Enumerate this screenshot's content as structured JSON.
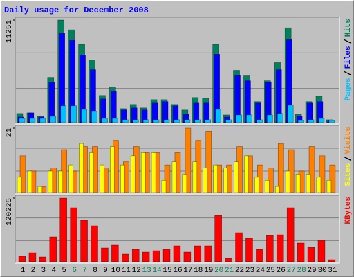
{
  "chart_data": {
    "type": "bar",
    "title": "Daily usage for December 2008",
    "categories": [
      "1",
      "2",
      "3",
      "4",
      "5",
      "6",
      "7",
      "8",
      "9",
      "10",
      "11",
      "12",
      "13",
      "14",
      "15",
      "16",
      "17",
      "18",
      "19",
      "20",
      "21",
      "22",
      "23",
      "24",
      "25",
      "26",
      "27",
      "28",
      "29",
      "30",
      "31"
    ],
    "category_colors": [
      "#000000",
      "#000000",
      "#000000",
      "#000000",
      "#000000",
      "#00805C",
      "#00805C",
      "#000000",
      "#000000",
      "#000000",
      "#000000",
      "#000000",
      "#00805C",
      "#00805C",
      "#000000",
      "#000000",
      "#000000",
      "#000000",
      "#000000",
      "#00805C",
      "#00805C",
      "#000000",
      "#000000",
      "#000000",
      "#000000",
      "#000000",
      "#00805C",
      "#00805C",
      "#000000",
      "#000000",
      "#000000"
    ],
    "panels": [
      {
        "ylim": [
          0,
          11251
        ],
        "yticks": [
          11251
        ],
        "grid": true,
        "series": [
          {
            "name": "Hits",
            "color": "#00805C",
            "values": [
              1000,
              1070,
              700,
              4970,
              11251,
              10180,
              8570,
              6890,
              2980,
              3900,
              1530,
              1990,
              1610,
              2520,
              2520,
              1990,
              1380,
              2750,
              2680,
              8570,
              840,
              5740,
              5130,
              2300,
              4590,
              6580,
              10400,
              920,
              2300,
              2900,
              310
            ]
          },
          {
            "name": "Files",
            "color": "#0000FF",
            "values": [
              610,
              1070,
              610,
              4440,
              9790,
              9030,
              7420,
              5810,
              2600,
              3440,
              1380,
              1610,
              1380,
              2140,
              2300,
              1840,
              920,
              2140,
              2140,
              7500,
              610,
              5200,
              4590,
              2140,
              4440,
              5810,
              9100,
              690,
              2140,
              2300,
              230
            ]
          },
          {
            "name": "Pages",
            "color": "#00C0FF",
            "values": [
              460,
              460,
              460,
              690,
              1840,
              1840,
              1450,
              1220,
              460,
              460,
              310,
              310,
              310,
              310,
              310,
              310,
              310,
              310,
              310,
              1450,
              310,
              840,
              840,
              310,
              840,
              1000,
              1910,
              230,
              310,
              460,
              230
            ]
          }
        ]
      },
      {
        "ylim": [
          0,
          21
        ],
        "yticks": [
          21
        ],
        "grid": true,
        "series": [
          {
            "name": "Visits",
            "color": "#FF8000",
            "values": [
              12,
              7,
              2,
              8,
              14,
              7,
              15,
              15,
              8,
              17,
              10,
              15,
              13,
              13,
              9,
              13,
              21,
              17,
              20,
              9,
              9,
              15,
              12,
              9,
              8,
              16,
              14,
              7,
              15,
              12,
              9
            ]
          },
          {
            "name": "Sites",
            "color": "#FFFF00",
            "values": [
              5,
              7,
              2,
              7,
              7,
              9,
              16,
              13,
              9,
              15,
              9,
              12,
              13,
              13,
              4,
              10,
              6,
              10,
              8,
              9,
              8,
              10,
              12,
              5,
              4,
              2,
              7,
              6,
              6,
              5,
              4
            ]
          }
        ]
      },
      {
        "ylim": [
          0,
          120225
        ],
        "yticks": [
          120225
        ],
        "grid": true,
        "series": [
          {
            "name": "KBytes",
            "color": "#FF0000",
            "values": [
              10460,
              17000,
              9150,
              47050,
              120225,
              101950,
              78430,
              67970,
              26150,
              31380,
              14380,
              23530,
              18300,
              20920,
              23530,
              30070,
              18300,
              30070,
              30070,
              87580,
              6540,
              54900,
              44450,
              23530,
              49670,
              50980,
              101950,
              35290,
              27450,
              40520,
              3920
            ]
          }
        ]
      }
    ]
  }
}
